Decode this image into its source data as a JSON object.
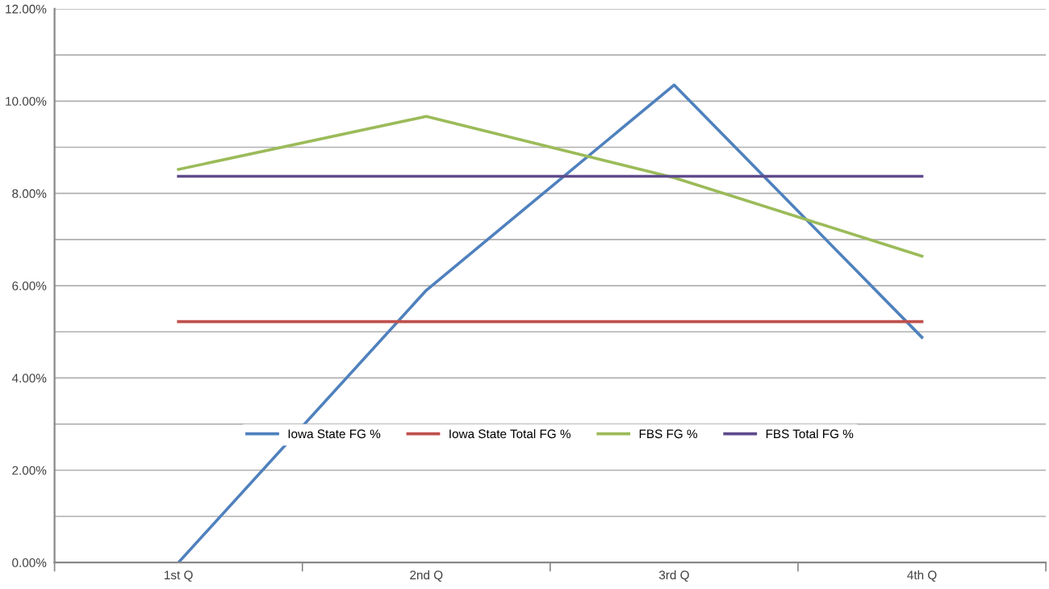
{
  "chart_data": {
    "type": "line",
    "categories": [
      "1st Q",
      "2nd Q",
      "3rd Q",
      "4th Q"
    ],
    "series": [
      {
        "name": "Iowa State FG %",
        "color": "#4f81bd",
        "values": [
          0,
          5.9,
          10.35,
          4.88
        ]
      },
      {
        "name": "Iowa State Total FG %",
        "color": "#c0504d",
        "values": [
          5.22,
          5.22,
          5.22,
          5.22
        ]
      },
      {
        "name": "FBS FG %",
        "color": "#9bbb59",
        "values": [
          8.52,
          9.67,
          8.34,
          6.64
        ]
      },
      {
        "name": "FBS Total FG %",
        "color": "#5f4b8b",
        "values": [
          8.37,
          8.37,
          8.37,
          8.37
        ]
      }
    ],
    "ylim": [
      0,
      12
    ],
    "yticks": [
      {
        "value": 0,
        "label": "0.00%"
      },
      {
        "value": 1,
        "label": null
      },
      {
        "value": 2,
        "label": "2.00%"
      },
      {
        "value": 3,
        "label": null
      },
      {
        "value": 4,
        "label": "4.00%"
      },
      {
        "value": 5,
        "label": null
      },
      {
        "value": 6,
        "label": "6.00%"
      },
      {
        "value": 7,
        "label": null
      },
      {
        "value": 8,
        "label": "8.00%"
      },
      {
        "value": 9,
        "label": null
      },
      {
        "value": 10,
        "label": "10.00%"
      },
      {
        "value": 11,
        "label": null
      },
      {
        "value": 12,
        "label": "12.00%"
      }
    ],
    "grid": "y",
    "legend": "bottom",
    "marker": "none",
    "line_style": "solid"
  }
}
